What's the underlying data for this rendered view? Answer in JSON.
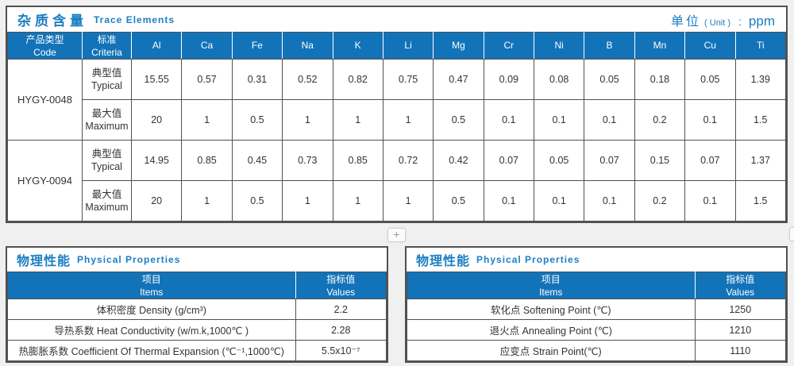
{
  "trace": {
    "title_zh": "杂质含量",
    "title_en": "Trace Elements",
    "unit_zh": "单位",
    "unit_en": "( Unit )",
    "unit_colon": ":",
    "unit_value": "ppm",
    "header": {
      "code_zh": "产品类型",
      "code_en": "Code",
      "criteria_zh": "标准",
      "criteria_en": "Criteria",
      "elements": [
        "Al",
        "Ca",
        "Fe",
        "Na",
        "K",
        "Li",
        "Mg",
        "Cr",
        "Ni",
        "B",
        "Mn",
        "Cu",
        "Ti"
      ]
    },
    "groups": [
      {
        "code": "HYGY-0048",
        "rows": [
          {
            "label_zh": "典型值",
            "label_en": "Typical",
            "values": [
              "15.55",
              "0.57",
              "0.31",
              "0.52",
              "0.82",
              "0.75",
              "0.47",
              "0.09",
              "0.08",
              "0.05",
              "0.18",
              "0.05",
              "1.39"
            ]
          },
          {
            "label_zh": "最大值",
            "label_en": "Maximum",
            "values": [
              "20",
              "1",
              "0.5",
              "1",
              "1",
              "1",
              "0.5",
              "0.1",
              "0.1",
              "0.1",
              "0.2",
              "0.1",
              "1.5"
            ]
          }
        ]
      },
      {
        "code": "HYGY-0094",
        "rows": [
          {
            "label_zh": "典型值",
            "label_en": "Typical",
            "values": [
              "14.95",
              "0.85",
              "0.45",
              "0.73",
              "0.85",
              "0.72",
              "0.42",
              "0.07",
              "0.05",
              "0.07",
              "0.15",
              "0.07",
              "1.37"
            ]
          },
          {
            "label_zh": "最大值",
            "label_en": "Maximum",
            "values": [
              "20",
              "1",
              "0.5",
              "1",
              "1",
              "1",
              "0.5",
              "0.1",
              "0.1",
              "0.1",
              "0.2",
              "0.1",
              "1.5"
            ]
          }
        ]
      }
    ]
  },
  "expand": {
    "label": "+"
  },
  "physical": [
    {
      "title_zh": "物理性能",
      "title_en": "Physical Properties",
      "header": {
        "items_zh": "项目",
        "items_en": "Items",
        "values_zh": "指标值",
        "values_en": "Values"
      },
      "rows": [
        {
          "item": "体积密度 Density (g/cm³)",
          "value": "2.2"
        },
        {
          "item": "导热系数 Heat Conductivity (w/m.k,1000℃ )",
          "value": "2.28"
        },
        {
          "item": "热膨胀系数 Coefficient Of Thermal Expansion (℃⁻¹,1000℃)",
          "value": "5.5x10⁻⁷"
        }
      ]
    },
    {
      "title_zh": "物理性能",
      "title_en": "Physical Properties",
      "header": {
        "items_zh": "项目",
        "items_en": "Items",
        "values_zh": "指标值",
        "values_en": "Values"
      },
      "rows": [
        {
          "item": "软化点 Softening Point (℃)",
          "value": "1250"
        },
        {
          "item": "退火点 Annealing Point (℃)",
          "value": "1210"
        },
        {
          "item": "应变点 Strain Point(℃)",
          "value": "1110"
        }
      ]
    }
  ],
  "colors": {
    "accent_blue": "#1b7ec3",
    "header_blue": "#1273b9"
  }
}
